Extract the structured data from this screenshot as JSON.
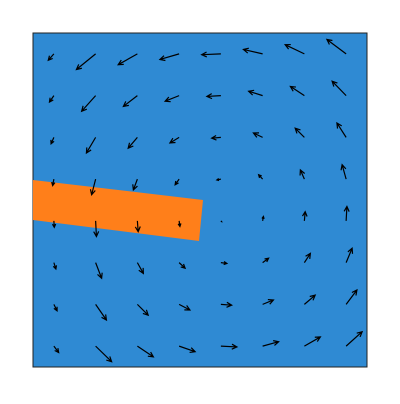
{
  "chart_data": {
    "type": "quiver",
    "background": "#2f8ad3",
    "color": "#000000",
    "xlim": [
      0,
      1
    ],
    "ylim": [
      0,
      1
    ],
    "x": [
      0.0625,
      0.1875,
      0.3125,
      0.4375,
      0.5625,
      0.6875,
      0.8125,
      0.9375
    ],
    "y": [
      0.9375,
      0.8125,
      0.6875,
      0.5625,
      0.4375,
      0.3125,
      0.1875,
      0.0625
    ],
    "u": [
      [
        -0.14,
        -0.48,
        -0.48,
        -0.48,
        -0.48,
        -0.48,
        -0.48,
        -0.48
      ],
      [
        -0.11,
        -0.35,
        -0.35,
        -0.35,
        -0.35,
        -0.35,
        -0.35,
        -0.35
      ],
      [
        -0.07,
        -0.23,
        -0.23,
        -0.23,
        -0.23,
        -0.23,
        -0.23,
        -0.23
      ],
      [
        -0.03,
        -0.1,
        -0.1,
        -0.1,
        -0.1,
        -0.1,
        -0.1,
        -0.1
      ],
      [
        0.01,
        0.02,
        0.02,
        0.02,
        0.02,
        0.02,
        0.02,
        0.02
      ],
      [
        0.05,
        0.15,
        0.15,
        0.15,
        0.15,
        0.15,
        0.15,
        0.15
      ],
      [
        0.08,
        0.27,
        0.27,
        0.27,
        0.27,
        0.27,
        0.27,
        0.27
      ],
      [
        0.12,
        0.4,
        0.4,
        0.4,
        0.4,
        0.4,
        0.4,
        0.4
      ]
    ],
    "v": [
      [
        -0.16,
        -0.39,
        -0.27,
        -0.14,
        -0.02,
        0.11,
        0.23,
        0.36
      ],
      [
        -0.16,
        -0.39,
        -0.27,
        -0.14,
        -0.02,
        0.11,
        0.23,
        0.36
      ],
      [
        -0.16,
        -0.39,
        -0.27,
        -0.14,
        -0.02,
        0.11,
        0.23,
        0.36
      ],
      [
        -0.16,
        -0.39,
        -0.27,
        -0.14,
        -0.02,
        0.11,
        0.23,
        0.36
      ],
      [
        -0.16,
        -0.39,
        -0.27,
        -0.14,
        -0.02,
        0.11,
        0.23,
        0.36
      ],
      [
        -0.16,
        -0.39,
        -0.27,
        -0.14,
        -0.02,
        0.11,
        0.23,
        0.36
      ],
      [
        -0.16,
        -0.39,
        -0.27,
        -0.14,
        -0.02,
        0.11,
        0.23,
        0.36
      ],
      [
        -0.16,
        -0.39,
        -0.27,
        -0.14,
        -0.02,
        0.11,
        0.23,
        0.36
      ]
    ]
  }
}
